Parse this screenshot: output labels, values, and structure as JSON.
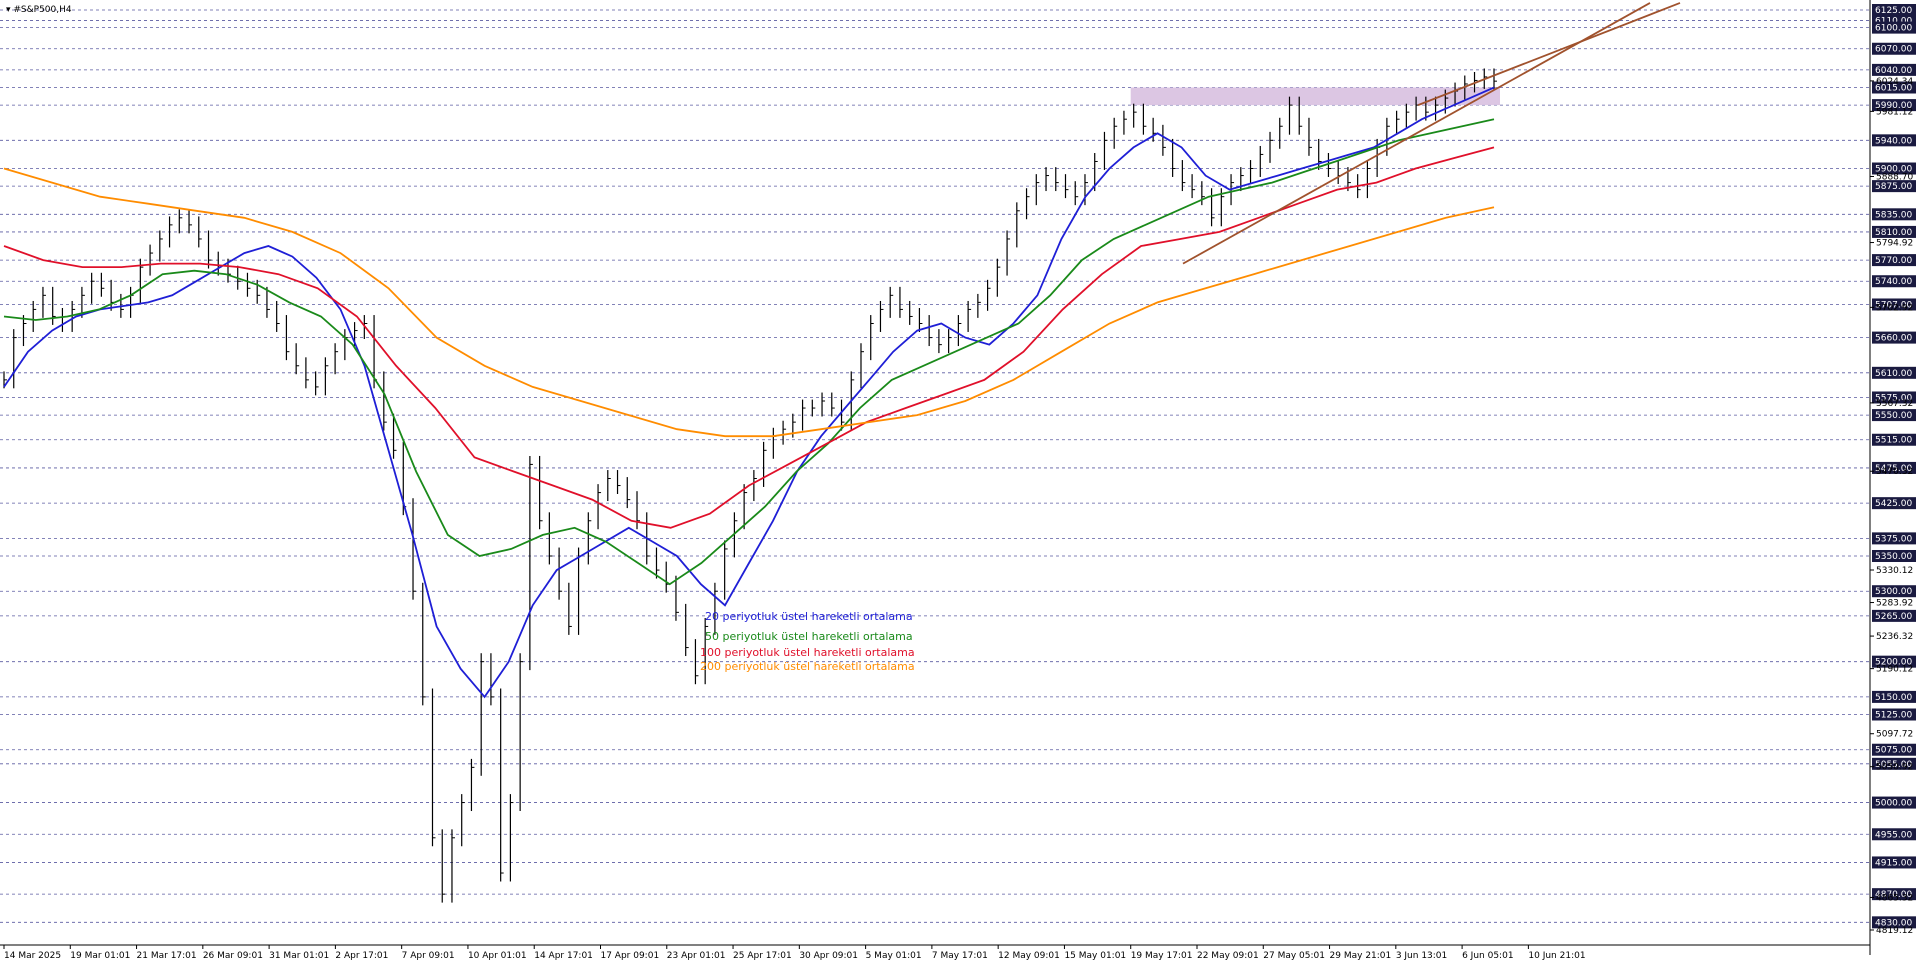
{
  "window": {
    "symbol_label": "▾ #S&P500,H4"
  },
  "legend": [
    {
      "label": "20 periyotluk üstel hareketli ortalama",
      "color": "#1f1fd6"
    },
    {
      "label": "50 periyotluk üstel hareketli ortalama",
      "color": "#1a8a1a"
    },
    {
      "label": "100 periyotluk üstel hareketli ortalama",
      "color": "#e0102a"
    },
    {
      "label": "200 periyotluk üstel hareketli ortalama",
      "color": "#ff8c00"
    }
  ],
  "chart_data": {
    "type": "line",
    "title": "#S&P500,H4",
    "instrument": "#S&P500",
    "timeframe": "H4",
    "ylim": [
      4819.12,
      6125.0
    ],
    "grid": "horizontal dashed lines at key levels",
    "x_tick_labels": [
      "14 Mar 2025",
      "19 Mar 01:01",
      "21 Mar 17:01",
      "26 Mar 09:01",
      "31 Mar 01:01",
      "2 Apr 17:01",
      "7 Apr 09:01",
      "10 Apr 01:01",
      "14 Apr 17:01",
      "17 Apr 09:01",
      "23 Apr 01:01",
      "25 Apr 17:01",
      "30 Apr 09:01",
      "5 May 01:01",
      "7 May 17:01",
      "12 May 09:01",
      "15 May 01:01",
      "19 May 17:01",
      "22 May 09:01",
      "27 May 05:01",
      "29 May 21:01",
      "3 Jun 13:01",
      "6 Jun 05:01",
      "10 Jun 21:01"
    ],
    "level_lines": [
      6125.0,
      6110.0,
      6100.0,
      6070.0,
      6040.0,
      6015.0,
      5990.0,
      5940.0,
      5900.0,
      5875.0,
      5835.0,
      5810.0,
      5770.0,
      5740.0,
      5707.0,
      5660.0,
      5610.0,
      5575.0,
      5550.0,
      5515.0,
      5475.0,
      5425.0,
      5375.0,
      5350.0,
      5300.0,
      5265.0,
      5200.0,
      5150.0,
      5125.0,
      5075.0,
      5055.0,
      5000.0,
      4955.0,
      4915.0,
      4870.0,
      4830.0
    ],
    "extra_price_labels": [
      6024.34,
      5981.12,
      5888.7,
      5794.92,
      5702.92,
      5567.32,
      5470.32,
      5330.12,
      5283.92,
      5236.32,
      5190.12,
      5097.72,
      5050.92,
      4865.32,
      4819.12
    ],
    "supply_zone": {
      "from": 5990.0,
      "to": 6015.0,
      "color": "#d8c0e0",
      "start_label": "19 May 17:01"
    },
    "price_close": [
      5600,
      5660,
      5680,
      5700,
      5720,
      5690,
      5680,
      5700,
      5720,
      5740,
      5730,
      5710,
      5700,
      5720,
      5760,
      5780,
      5800,
      5820,
      5830,
      5820,
      5800,
      5770,
      5760,
      5750,
      5740,
      5730,
      5720,
      5700,
      5680,
      5640,
      5620,
      5600,
      5590,
      5620,
      5640,
      5660,
      5670,
      5680,
      5600,
      5540,
      5500,
      5420,
      5300,
      5150,
      4950,
      4870,
      4950,
      5000,
      5050,
      5200,
      5150,
      4900,
      5000,
      5200,
      5480,
      5400,
      5350,
      5300,
      5250,
      5350,
      5400,
      5440,
      5460,
      5450,
      5430,
      5400,
      5350,
      5330,
      5310,
      5270,
      5220,
      5180,
      5250,
      5300,
      5360,
      5400,
      5440,
      5460,
      5500,
      5520,
      5530,
      5540,
      5560,
      5560,
      5570,
      5560,
      5540,
      5600,
      5640,
      5680,
      5700,
      5720,
      5700,
      5690,
      5680,
      5660,
      5650,
      5660,
      5680,
      5700,
      5710,
      5730,
      5760,
      5800,
      5840,
      5860,
      5880,
      5890,
      5880,
      5870,
      5860,
      5880,
      5910,
      5940,
      5960,
      5970,
      5980,
      5960,
      5950,
      5930,
      5900,
      5880,
      5870,
      5860,
      5830,
      5860,
      5880,
      5890,
      5900,
      5920,
      5940,
      5960,
      5990,
      5960,
      5930,
      5910,
      5900,
      5890,
      5880,
      5870,
      5900,
      5930,
      5960,
      5970,
      5980,
      5990,
      5980,
      5990,
      6000,
      6010,
      6020,
      6025,
      6030,
      6024
    ],
    "series": [
      {
        "name": "20 periyotluk üstel hareketli ortalama",
        "color": "#1f1fd6",
        "values": [
          5590,
          5640,
          5670,
          5690,
          5700,
          5705,
          5710,
          5720,
          5740,
          5760,
          5780,
          5790,
          5775,
          5745,
          5700,
          5620,
          5500,
          5380,
          5250,
          5190,
          5150,
          5200,
          5280,
          5330,
          5350,
          5370,
          5390,
          5370,
          5350,
          5310,
          5280,
          5340,
          5400,
          5470,
          5520,
          5560,
          5600,
          5640,
          5670,
          5680,
          5660,
          5650,
          5680,
          5720,
          5800,
          5860,
          5900,
          5930,
          5950,
          5930,
          5890,
          5870,
          5880,
          5890,
          5900,
          5910,
          5920,
          5930,
          5950,
          5970,
          5985,
          6000,
          6015
        ]
      },
      {
        "name": "50 periyotluk üstel hareketli ortalama",
        "color": "#1a8a1a",
        "values": [
          5690,
          5685,
          5690,
          5700,
          5720,
          5750,
          5755,
          5750,
          5735,
          5710,
          5690,
          5650,
          5580,
          5470,
          5380,
          5350,
          5360,
          5380,
          5390,
          5370,
          5340,
          5310,
          5340,
          5380,
          5420,
          5470,
          5510,
          5560,
          5600,
          5620,
          5640,
          5660,
          5680,
          5720,
          5770,
          5800,
          5820,
          5840,
          5860,
          5870,
          5880,
          5895,
          5910,
          5925,
          5940,
          5950,
          5960,
          5970
        ]
      },
      {
        "name": "100 periyotluk üstel hareketli ortalama",
        "color": "#e0102a",
        "values": [
          5790,
          5770,
          5760,
          5760,
          5765,
          5765,
          5760,
          5750,
          5730,
          5690,
          5620,
          5560,
          5490,
          5470,
          5450,
          5430,
          5400,
          5390,
          5410,
          5450,
          5480,
          5510,
          5540,
          5560,
          5580,
          5600,
          5640,
          5700,
          5750,
          5790,
          5800,
          5810,
          5830,
          5850,
          5870,
          5880,
          5900,
          5915,
          5930
        ]
      },
      {
        "name": "200 periyotluk üstel hareketli ortalama",
        "color": "#ff8c00",
        "values": [
          5900,
          5880,
          5860,
          5850,
          5840,
          5830,
          5810,
          5780,
          5730,
          5660,
          5620,
          5590,
          5570,
          5550,
          5530,
          5520,
          5520,
          5530,
          5540,
          5550,
          5570,
          5600,
          5640,
          5680,
          5710,
          5730,
          5750,
          5770,
          5790,
          5810,
          5830,
          5845
        ]
      }
    ],
    "trendlines": [
      {
        "name": "wedge-upper",
        "points": [
          [
            5990,
            6040
          ],
          [
            6060,
            6135
          ]
        ],
        "color": "#a0522d"
      },
      {
        "name": "wedge-lower",
        "points": [
          [
            5765,
            5830
          ],
          [
            5990,
            6135
          ]
        ],
        "color": "#a0522d"
      }
    ]
  }
}
